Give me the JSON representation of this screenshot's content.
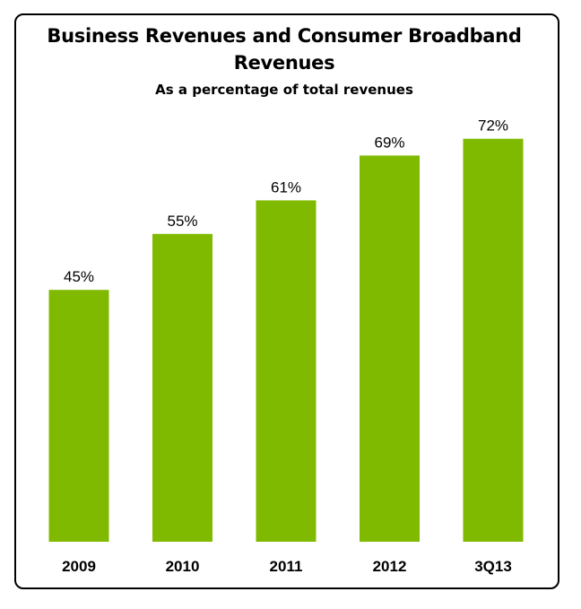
{
  "chart_data": {
    "type": "bar",
    "title": "Business Revenues and Consumer Broadband Revenues",
    "subtitle": "As a percentage of total revenues",
    "categories": [
      "2009",
      "2010",
      "2011",
      "2012",
      "3Q13"
    ],
    "values": [
      45,
      55,
      61,
      69,
      72
    ],
    "data_labels": [
      "45%",
      "55%",
      "61%",
      "69%",
      "72%"
    ],
    "ylim": [
      0,
      100
    ],
    "grid": false,
    "legend": "none",
    "bar_color": "#7fba00"
  }
}
